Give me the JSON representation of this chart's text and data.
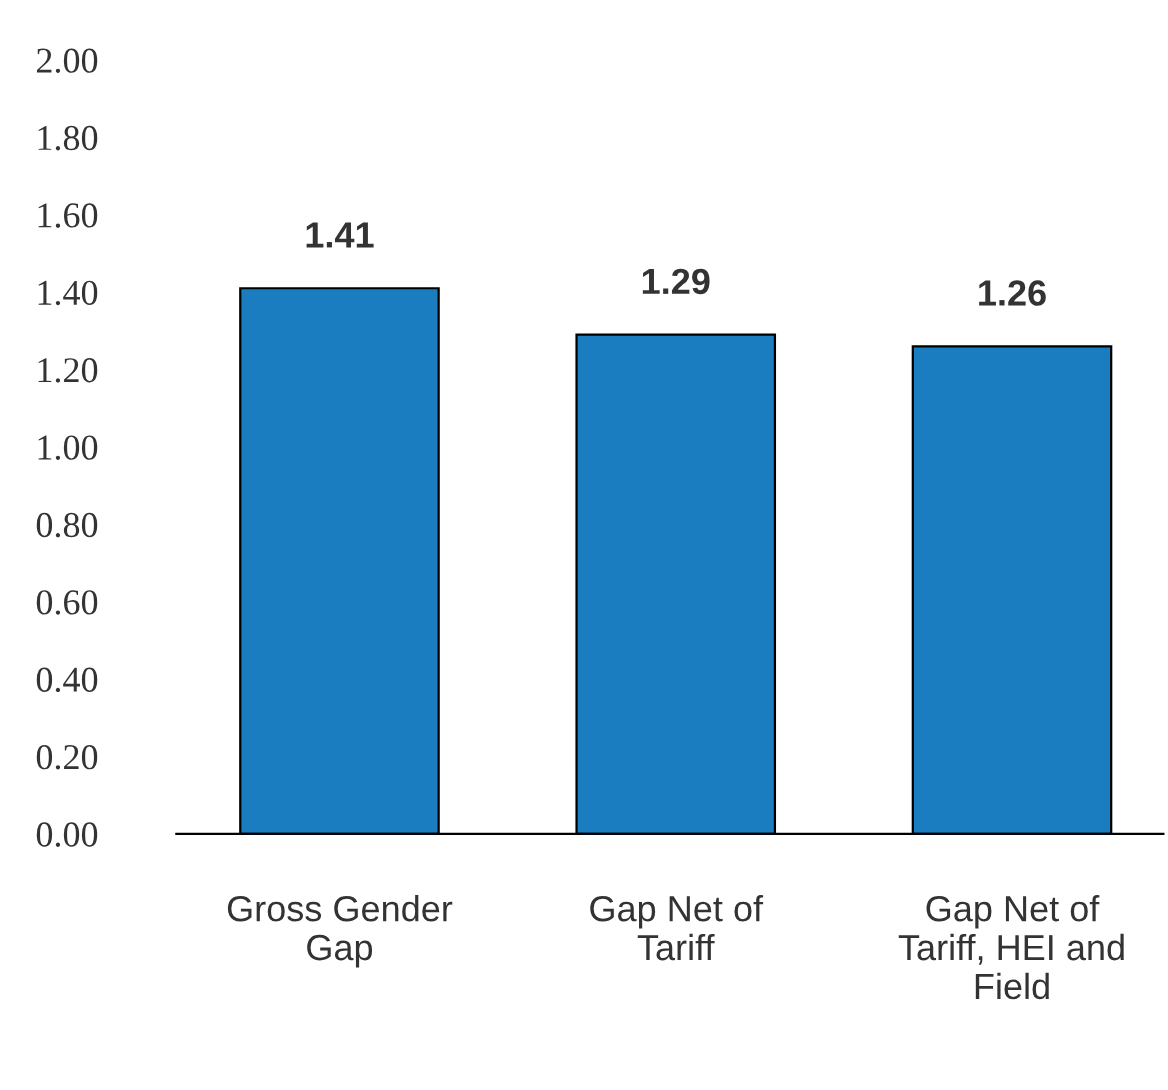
{
  "chart_data": {
    "type": "bar",
    "categories": [
      "Gross Gender Gap",
      "Gap Net of Tariff",
      "Gap Net of Tariff, HEI and Field"
    ],
    "values": [
      1.41,
      1.29,
      1.26
    ],
    "color": "#1a7dc0",
    "ylim": [
      0,
      2
    ],
    "yticks": [
      {
        "value": 0,
        "label": "0.00"
      },
      {
        "value": 0.2,
        "label": "0.20"
      },
      {
        "value": 0.4,
        "label": "0.40"
      },
      {
        "value": 0.6,
        "label": "0.60"
      },
      {
        "value": 0.8,
        "label": "0.80"
      },
      {
        "value": 1,
        "label": "1.00"
      },
      {
        "value": 1.2,
        "label": "1.20"
      },
      {
        "value": 1.4,
        "label": "1.40"
      },
      {
        "value": 1.6,
        "label": "1.60"
      },
      {
        "value": 1.8,
        "label": "1.80"
      },
      {
        "value": 2,
        "label": "2.00"
      }
    ],
    "data_labels": true
  }
}
